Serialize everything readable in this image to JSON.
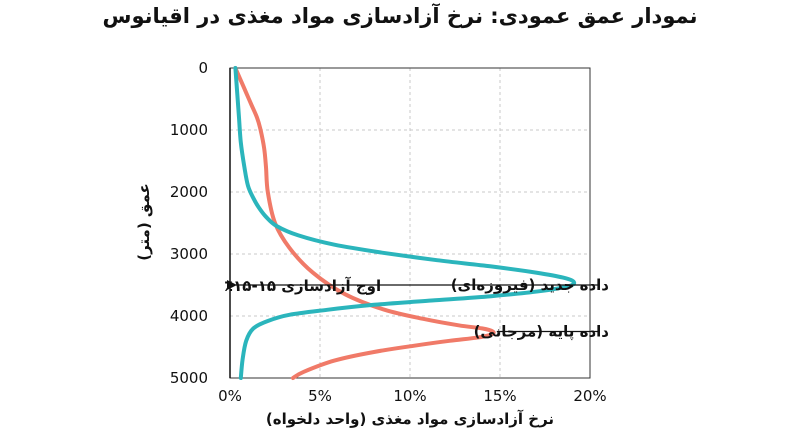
{
  "chart_data": {
    "type": "line",
    "title": "نمودار عمق عمودی: نرخ آزادسازی مواد مغذی در اقیانوس",
    "xlabel": "نرخ آزادسازی مواد مغذی (واحد دلخواه)",
    "ylabel": "عمق (متر)",
    "xlim": [
      0,
      20
    ],
    "ylim": [
      0,
      5000
    ],
    "y_inverted": true,
    "grid": true,
    "x_ticks": [
      "0%",
      "5%",
      "10%",
      "15%",
      "20%"
    ],
    "y_ticks": [
      "0",
      "1000",
      "2000",
      "3000",
      "4000",
      "5000"
    ],
    "series": [
      {
        "name": "داده پایه (مرجانی)",
        "color": "#F07A68",
        "x": [
          0.3,
          0.6,
          0.9,
          1.2,
          1.5,
          1.7,
          1.9,
          2.0,
          2.1,
          2.5,
          3.3,
          4.6,
          6.4,
          8.6,
          10.8,
          12.7,
          14.0,
          14.6,
          14.5,
          13.7,
          12.2,
          10.2,
          8.0,
          5.8,
          4.1,
          3.5
        ],
        "y": [
          0,
          200,
          400,
          600,
          800,
          1000,
          1300,
          1600,
          2000,
          2500,
          2900,
          3300,
          3650,
          3900,
          4050,
          4150,
          4200,
          4250,
          4300,
          4350,
          4400,
          4480,
          4580,
          4720,
          4900,
          5000
        ]
      },
      {
        "name": "داده جدید (فیروزه‌ای)",
        "color": "#2BB5BC",
        "x": [
          0.3,
          0.4,
          0.5,
          0.6,
          0.8,
          1.0,
          1.3,
          1.6,
          2.0,
          2.6,
          3.8,
          5.8,
          8.5,
          11.5,
          14.5,
          17.0,
          18.5,
          19.1,
          18.8,
          17.2,
          14.5,
          11.2,
          8.0,
          5.4,
          3.3,
          2.1,
          1.3,
          0.9,
          0.7,
          0.6
        ],
        "y": [
          0,
          400,
          800,
          1200,
          1600,
          1900,
          2100,
          2250,
          2400,
          2550,
          2700,
          2850,
          2980,
          3100,
          3200,
          3300,
          3380,
          3450,
          3520,
          3600,
          3680,
          3750,
          3820,
          3900,
          3980,
          4080,
          4200,
          4400,
          4700,
          5000
        ]
      }
    ],
    "annotations": {
      "peak_label": "اوج آزادسازی ۱۵-۱۵٪",
      "peak_depth": 3500,
      "new_label": "داده جدید (فیروزه‌ای)",
      "new_label_depth": 3500,
      "base_label": "داده پایه (مرجانی)",
      "base_label_depth": 4250,
      "base_pointer_x": 14.6
    }
  }
}
